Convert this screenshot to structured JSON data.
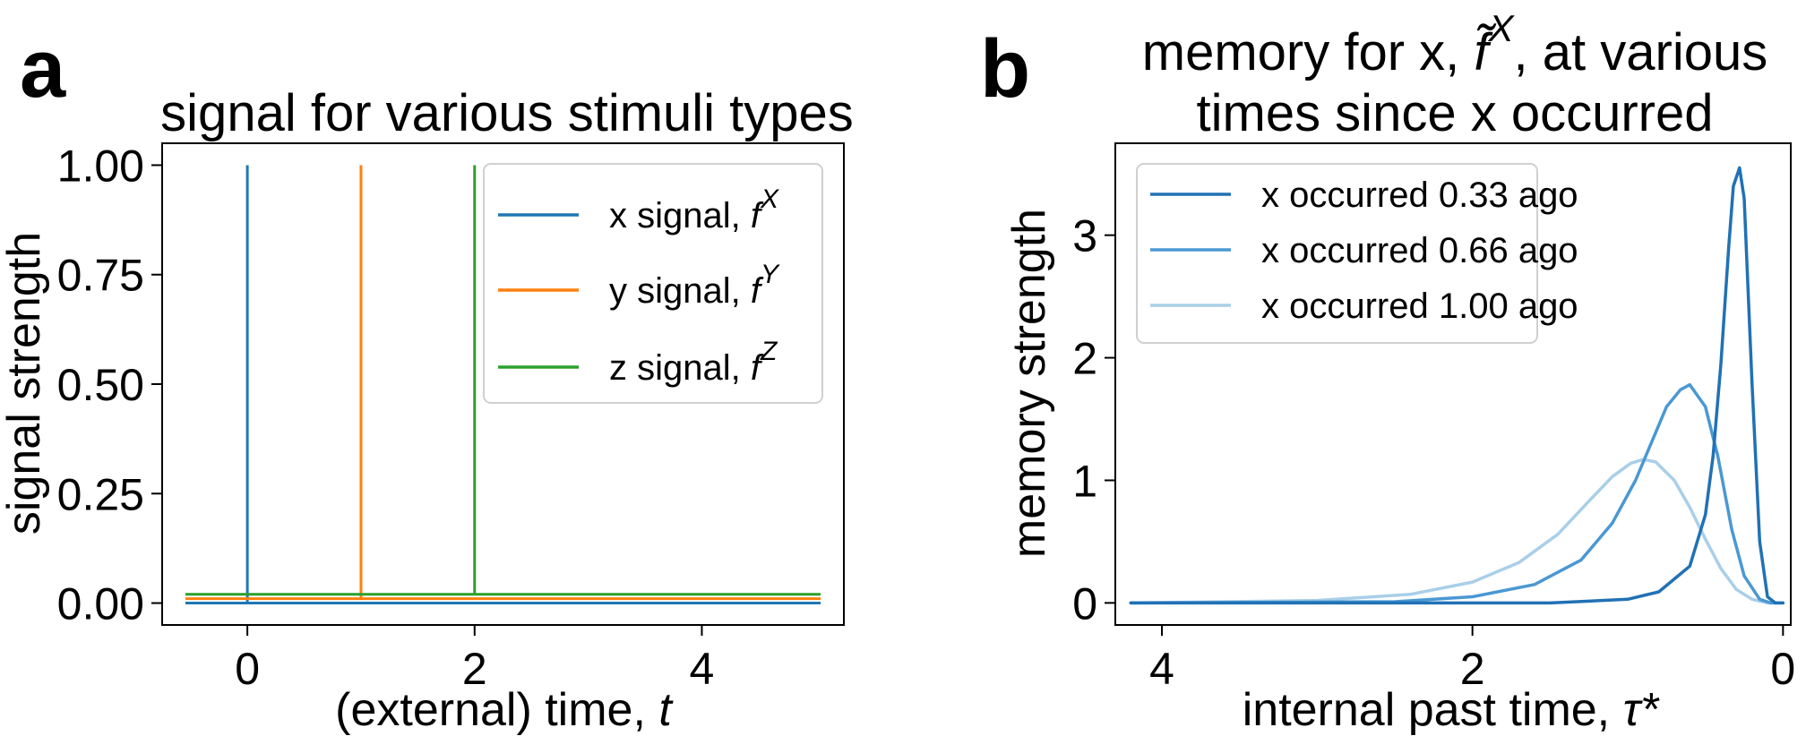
{
  "chart_data": [
    {
      "panel": "a",
      "type": "line",
      "title": "signal for various stimuli types",
      "xlabel_text": "(external) time, ",
      "xlabel_var": "t",
      "ylabel": "signal strength",
      "xlim": [
        -0.75,
        5.25
      ],
      "ylim": [
        -0.05,
        1.05
      ],
      "xticks": [
        0,
        2,
        4
      ],
      "yticks": [
        0.0,
        0.25,
        0.5,
        0.75,
        1.0
      ],
      "ytick_labels": [
        "0.00",
        "0.25",
        "0.50",
        "0.75",
        "1.00"
      ],
      "grid": false,
      "legend_position": "top-right",
      "series": [
        {
          "label_prefix": "x signal, ",
          "label_base": "f",
          "label_sup": "X",
          "color": "#1f77b4",
          "baseline": 0.0,
          "spike_at": 0,
          "spike_height": 1.0
        },
        {
          "label_prefix": "y signal, ",
          "label_base": "f",
          "label_sup": "Y",
          "color": "#ff7f0e",
          "baseline": 0.01,
          "spike_at": 1,
          "spike_height": 1.0
        },
        {
          "label_prefix": "z signal, ",
          "label_base": "f",
          "label_sup": "Z",
          "color": "#2ca02c",
          "baseline": 0.02,
          "spike_at": 2,
          "spike_height": 1.0
        }
      ]
    },
    {
      "panel": "b",
      "type": "line",
      "title_line1_prefix": "memory for x, ",
      "title_line1_var": "f̃",
      "title_line1_sup": "X",
      "title_line1_suffix": ", at various",
      "title_line2": "times since x occurred",
      "xlabel_text": "internal past time, ",
      "xlabel_var": "τ*",
      "ylabel": "memory strength",
      "xlim": [
        4.3,
        -0.05
      ],
      "ylim": [
        -0.18,
        3.75
      ],
      "xticks": [
        4,
        2,
        0
      ],
      "yticks": [
        0,
        1,
        2,
        3
      ],
      "grid": false,
      "legend_position": "top-left",
      "series": [
        {
          "label": "x occurred 0.33 ago",
          "color": "#2171b5",
          "x": [
            4.2,
            1.5,
            1.0,
            0.8,
            0.6,
            0.5,
            0.45,
            0.4,
            0.35,
            0.32,
            0.28,
            0.25,
            0.2,
            0.15,
            0.1,
            0.05,
            0.0
          ],
          "y": [
            0.0,
            0.0,
            0.03,
            0.09,
            0.3,
            0.72,
            1.2,
            1.95,
            2.9,
            3.4,
            3.55,
            3.3,
            1.8,
            0.5,
            0.05,
            0.0,
            0.0
          ]
        },
        {
          "label": "x occurred 0.66 ago",
          "color": "#4a98d3",
          "x": [
            4.2,
            2.5,
            2.0,
            1.6,
            1.3,
            1.1,
            0.95,
            0.85,
            0.75,
            0.66,
            0.6,
            0.5,
            0.42,
            0.33,
            0.25,
            0.15,
            0.08,
            0.0
          ],
          "y": [
            0.0,
            0.01,
            0.05,
            0.15,
            0.35,
            0.65,
            1.0,
            1.3,
            1.6,
            1.74,
            1.78,
            1.6,
            1.2,
            0.6,
            0.22,
            0.03,
            0.0,
            0.0
          ]
        },
        {
          "label": "x occurred 1.00 ago",
          "color": "#a9cfe8",
          "x": [
            4.2,
            3.0,
            2.4,
            2.0,
            1.7,
            1.45,
            1.25,
            1.1,
            0.98,
            0.9,
            0.82,
            0.7,
            0.6,
            0.5,
            0.4,
            0.3,
            0.2,
            0.1,
            0.05
          ],
          "y": [
            0.0,
            0.02,
            0.07,
            0.17,
            0.33,
            0.56,
            0.83,
            1.03,
            1.14,
            1.17,
            1.15,
            1.0,
            0.78,
            0.52,
            0.28,
            0.11,
            0.03,
            0.0,
            0.0
          ]
        }
      ]
    }
  ]
}
